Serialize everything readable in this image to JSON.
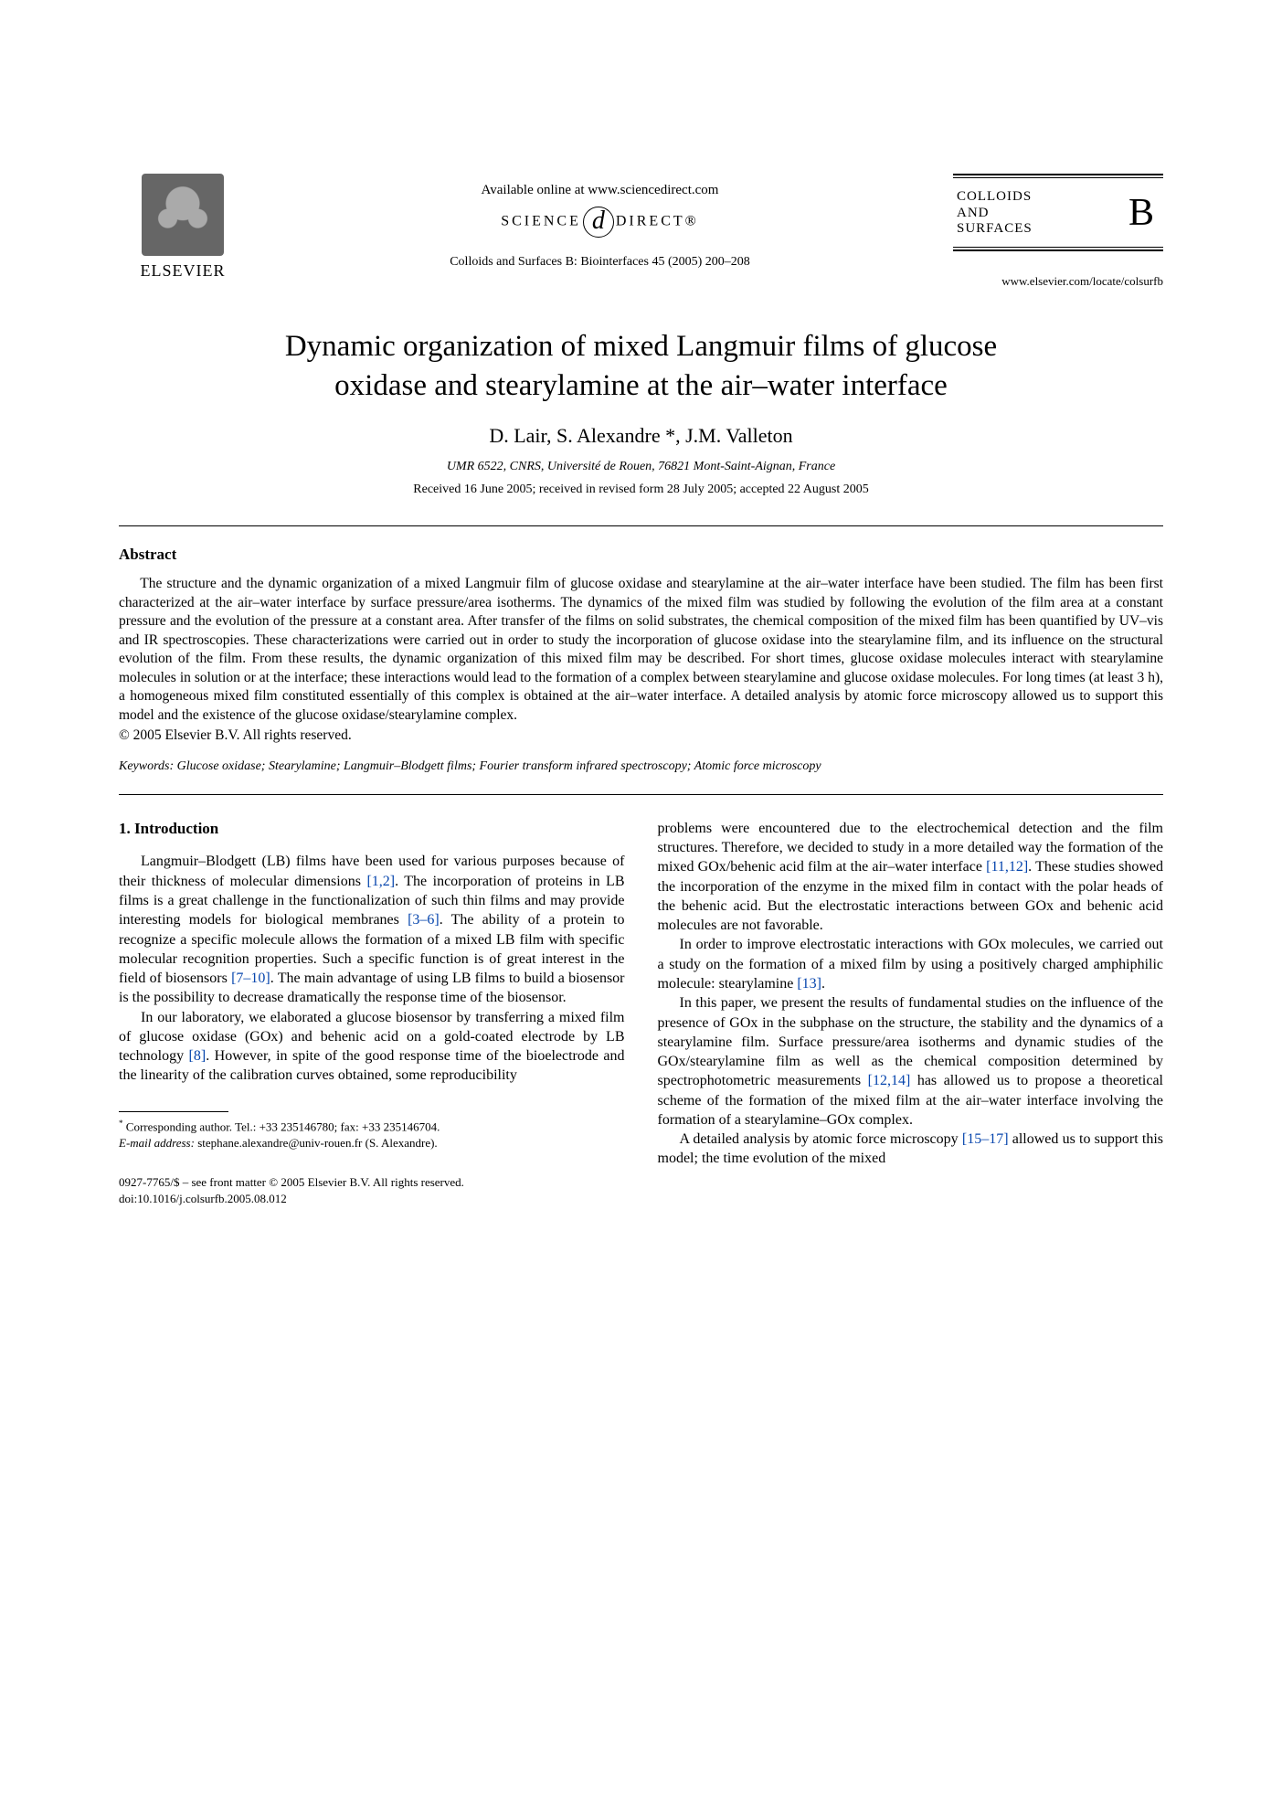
{
  "header": {
    "elsevier_label": "ELSEVIER",
    "available_line": "Available online at www.sciencedirect.com",
    "sciencedirect_left": "SCIENCE",
    "sciencedirect_right": "DIRECT®",
    "citation": "Colloids and Surfaces B: Biointerfaces 45 (2005) 200–208",
    "journal_name_l1": "COLLOIDS",
    "journal_name_l2": "AND",
    "journal_name_l3": "SURFACES",
    "journal_letter": "B",
    "journal_url": "www.elsevier.com/locate/colsurfb"
  },
  "title_l1": "Dynamic organization of mixed Langmuir films of glucose",
  "title_l2": "oxidase and stearylamine at the air–water interface",
  "authors": "D. Lair, S. Alexandre *, J.M. Valleton",
  "affiliation": "UMR 6522, CNRS, Université de Rouen, 76821 Mont-Saint-Aignan, France",
  "dates": "Received 16 June 2005; received in revised form 28 July 2005; accepted 22 August 2005",
  "abstract": {
    "heading": "Abstract",
    "body": "The structure and the dynamic organization of a mixed Langmuir film of glucose oxidase and stearylamine at the air–water interface have been studied. The film has been first characterized at the air–water interface by surface pressure/area isotherms. The dynamics of the mixed film was studied by following the evolution of the film area at a constant pressure and the evolution of the pressure at a constant area. After transfer of the films on solid substrates, the chemical composition of the mixed film has been quantified by UV–vis and IR spectroscopies. These characterizations were carried out in order to study the incorporation of glucose oxidase into the stearylamine film, and its influence on the structural evolution of the film. From these results, the dynamic organization of this mixed film may be described. For short times, glucose oxidase molecules interact with stearylamine molecules in solution or at the interface; these interactions would lead to the formation of a complex between stearylamine and glucose oxidase molecules. For long times (at least 3 h), a homogeneous mixed film constituted essentially of this complex is obtained at the air–water interface. A detailed analysis by atomic force microscopy allowed us to support this model and the existence of the glucose oxidase/stearylamine complex.",
    "copyright": "© 2005 Elsevier B.V. All rights reserved."
  },
  "keywords": {
    "label": "Keywords:",
    "text": "Glucose oxidase; Stearylamine; Langmuir–Blodgett films; Fourier transform infrared spectroscopy; Atomic force microscopy"
  },
  "section1": {
    "heading": "1. Introduction",
    "left": {
      "p1a": "Langmuir–Blodgett (LB) films have been used for various purposes because of their thickness of molecular dimensions ",
      "p1_ref1": "[1,2]",
      "p1b": ". The incorporation of proteins in LB films is a great challenge in the functionalization of such thin films and may provide interesting models for biological membranes ",
      "p1_ref2": "[3–6]",
      "p1c": ". The ability of a protein to recognize a specific molecule allows the formation of a mixed LB film with specific molecular recognition properties. Such a specific function is of great interest in the field of biosensors ",
      "p1_ref3": "[7–10]",
      "p1d": ". The main advantage of using LB films to build a biosensor is the possibility to decrease dramatically the response time of the biosensor.",
      "p2a": "In our laboratory, we elaborated a glucose biosensor by transferring a mixed film of glucose oxidase (GOx) and behenic acid on a gold-coated electrode by LB technology ",
      "p2_ref1": "[8]",
      "p2b": ". However, in spite of the good response time of the bioelectrode and the linearity of the calibration curves obtained, some reproducibility"
    },
    "right": {
      "p1a": "problems were encountered due to the electrochemical detection and the film structures. Therefore, we decided to study in a more detailed way the formation of the mixed GOx/behenic acid film at the air–water interface ",
      "p1_ref1": "[11,12]",
      "p1b": ". These studies showed the incorporation of the enzyme in the mixed film in contact with the polar heads of the behenic acid. But the electrostatic interactions between GOx and behenic acid molecules are not favorable.",
      "p2a": "In order to improve electrostatic interactions with GOx molecules, we carried out a study on the formation of a mixed film by using a positively charged amphiphilic molecule: stearylamine ",
      "p2_ref1": "[13]",
      "p2b": ".",
      "p3a": "In this paper, we present the results of fundamental studies on the influence of the presence of GOx in the subphase on the structure, the stability and the dynamics of a stearylamine film. Surface pressure/area isotherms and dynamic studies of the GOx/stearylamine film as well as the chemical composition determined by spectrophotometric measurements ",
      "p3_ref1": "[12,14]",
      "p3b": " has allowed us to propose a theoretical scheme of the formation of the mixed film at the air–water interface involving the formation of a stearylamine–GOx complex.",
      "p4a": "A detailed analysis by atomic force microscopy ",
      "p4_ref1": "[15–17]",
      "p4b": " allowed us to support this model; the time evolution of the mixed"
    }
  },
  "footnotes": {
    "corr": "Corresponding author. Tel.: +33 235146780; fax: +33 235146704.",
    "email_label": "E-mail address:",
    "email": "stephane.alexandre@univ-rouen.fr (S. Alexandre)."
  },
  "bottom": {
    "line1": "0927-7765/$ – see front matter © 2005 Elsevier B.V. All rights reserved.",
    "line2": "doi:10.1016/j.colsurfb.2005.08.012"
  },
  "colors": {
    "link": "#0645ad",
    "text": "#000000",
    "background": "#ffffff"
  }
}
